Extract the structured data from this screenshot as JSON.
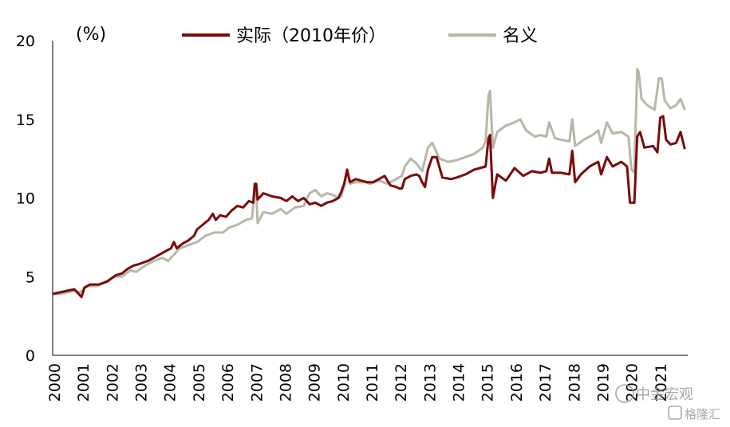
{
  "chart_data": {
    "type": "line",
    "unit_label": "(%)",
    "ylim": [
      0,
      20
    ],
    "yticks": [
      0,
      5,
      10,
      15,
      20
    ],
    "xlim": [
      2000,
      2022
    ],
    "xticks": [
      "2000",
      "2001",
      "2002",
      "2003",
      "2004",
      "2005",
      "2006",
      "2007",
      "2008",
      "2009",
      "2010",
      "2011",
      "2012",
      "2013",
      "2014",
      "2015",
      "2016",
      "2017",
      "2018",
      "2019",
      "2020",
      "2021"
    ],
    "legend_position": "top",
    "grid": false,
    "series": [
      {
        "name": "实际（2010年价）",
        "color": "#7a0a0a",
        "points": [
          [
            2000.0,
            3.9
          ],
          [
            2000.25,
            4.0
          ],
          [
            2000.5,
            4.1
          ],
          [
            2000.75,
            4.2
          ],
          [
            2000.95,
            3.8
          ],
          [
            2001.0,
            3.7
          ],
          [
            2001.1,
            4.3
          ],
          [
            2001.3,
            4.5
          ],
          [
            2001.6,
            4.5
          ],
          [
            2001.9,
            4.7
          ],
          [
            2002.2,
            5.1
          ],
          [
            2002.4,
            5.2
          ],
          [
            2002.6,
            5.5
          ],
          [
            2002.8,
            5.7
          ],
          [
            2003.0,
            5.8
          ],
          [
            2003.3,
            6.0
          ],
          [
            2003.6,
            6.3
          ],
          [
            2003.9,
            6.6
          ],
          [
            2004.1,
            6.8
          ],
          [
            2004.2,
            7.2
          ],
          [
            2004.3,
            6.8
          ],
          [
            2004.5,
            7.1
          ],
          [
            2004.7,
            7.3
          ],
          [
            2004.9,
            7.6
          ],
          [
            2005.0,
            8.0
          ],
          [
            2005.2,
            8.3
          ],
          [
            2005.4,
            8.6
          ],
          [
            2005.55,
            9.0
          ],
          [
            2005.65,
            8.6
          ],
          [
            2005.8,
            8.9
          ],
          [
            2006.0,
            8.8
          ],
          [
            2006.2,
            9.2
          ],
          [
            2006.4,
            9.5
          ],
          [
            2006.6,
            9.4
          ],
          [
            2006.8,
            9.8
          ],
          [
            2006.95,
            9.7
          ],
          [
            2007.0,
            10.9
          ],
          [
            2007.05,
            10.9
          ],
          [
            2007.1,
            9.9
          ],
          [
            2007.3,
            10.3
          ],
          [
            2007.6,
            10.1
          ],
          [
            2007.9,
            10.0
          ],
          [
            2008.1,
            9.8
          ],
          [
            2008.3,
            10.1
          ],
          [
            2008.5,
            9.8
          ],
          [
            2008.7,
            10.0
          ],
          [
            2008.9,
            9.6
          ],
          [
            2009.1,
            9.7
          ],
          [
            2009.3,
            9.5
          ],
          [
            2009.5,
            9.7
          ],
          [
            2009.7,
            9.8
          ],
          [
            2009.9,
            10.0
          ],
          [
            2010.0,
            10.4
          ],
          [
            2010.1,
            10.9
          ],
          [
            2010.2,
            11.8
          ],
          [
            2010.3,
            11.0
          ],
          [
            2010.5,
            11.2
          ],
          [
            2010.7,
            11.1
          ],
          [
            2010.9,
            11.0
          ],
          [
            2011.1,
            11.0
          ],
          [
            2011.3,
            11.2
          ],
          [
            2011.5,
            11.4
          ],
          [
            2011.7,
            10.8
          ],
          [
            2011.9,
            10.7
          ],
          [
            2012.0,
            10.6
          ],
          [
            2012.1,
            10.6
          ],
          [
            2012.2,
            11.2
          ],
          [
            2012.4,
            11.4
          ],
          [
            2012.6,
            11.5
          ],
          [
            2012.7,
            11.4
          ],
          [
            2012.8,
            11.0
          ],
          [
            2012.9,
            10.7
          ],
          [
            2013.0,
            11.8
          ],
          [
            2013.15,
            12.6
          ],
          [
            2013.3,
            12.6
          ],
          [
            2013.5,
            11.3
          ],
          [
            2013.8,
            11.2
          ],
          [
            2014.0,
            11.3
          ],
          [
            2014.3,
            11.5
          ],
          [
            2014.6,
            11.8
          ],
          [
            2014.8,
            11.9
          ],
          [
            2015.0,
            12.0
          ],
          [
            2015.1,
            13.8
          ],
          [
            2015.15,
            14.0
          ],
          [
            2015.25,
            10.0
          ],
          [
            2015.4,
            11.5
          ],
          [
            2015.7,
            11.1
          ],
          [
            2016.0,
            11.9
          ],
          [
            2016.3,
            11.4
          ],
          [
            2016.6,
            11.7
          ],
          [
            2016.9,
            11.6
          ],
          [
            2017.1,
            11.7
          ],
          [
            2017.2,
            12.5
          ],
          [
            2017.3,
            11.6
          ],
          [
            2017.6,
            11.6
          ],
          [
            2017.9,
            11.5
          ],
          [
            2018.0,
            13.0
          ],
          [
            2018.1,
            11.0
          ],
          [
            2018.3,
            11.5
          ],
          [
            2018.6,
            12.0
          ],
          [
            2018.9,
            12.3
          ],
          [
            2019.0,
            11.5
          ],
          [
            2019.2,
            12.6
          ],
          [
            2019.4,
            12.0
          ],
          [
            2019.7,
            12.3
          ],
          [
            2019.9,
            12.0
          ],
          [
            2020.0,
            9.7
          ],
          [
            2020.15,
            9.7
          ],
          [
            2020.25,
            13.9
          ],
          [
            2020.35,
            14.2
          ],
          [
            2020.5,
            13.2
          ],
          [
            2020.8,
            13.3
          ],
          [
            2020.95,
            12.9
          ],
          [
            2021.05,
            15.1
          ],
          [
            2021.15,
            15.2
          ],
          [
            2021.25,
            13.7
          ],
          [
            2021.4,
            13.4
          ],
          [
            2021.6,
            13.5
          ],
          [
            2021.75,
            14.2
          ],
          [
            2021.9,
            13.1
          ]
        ]
      },
      {
        "name": "名义",
        "color": "#b8b7a8",
        "points": [
          [
            2000.0,
            3.9
          ],
          [
            2000.25,
            3.9
          ],
          [
            2000.5,
            4.0
          ],
          [
            2000.75,
            4.1
          ],
          [
            2000.95,
            4.0
          ],
          [
            2001.0,
            4.1
          ],
          [
            2001.2,
            4.4
          ],
          [
            2001.5,
            4.4
          ],
          [
            2001.8,
            4.6
          ],
          [
            2002.1,
            5.0
          ],
          [
            2002.4,
            5.0
          ],
          [
            2002.7,
            5.4
          ],
          [
            2002.9,
            5.3
          ],
          [
            2003.2,
            5.7
          ],
          [
            2003.5,
            6.0
          ],
          [
            2003.8,
            6.2
          ],
          [
            2004.0,
            6.0
          ],
          [
            2004.2,
            6.4
          ],
          [
            2004.4,
            6.8
          ],
          [
            2004.7,
            7.0
          ],
          [
            2005.0,
            7.2
          ],
          [
            2005.3,
            7.6
          ],
          [
            2005.6,
            7.8
          ],
          [
            2005.9,
            7.8
          ],
          [
            2006.1,
            8.1
          ],
          [
            2006.4,
            8.3
          ],
          [
            2006.7,
            8.6
          ],
          [
            2006.9,
            8.7
          ],
          [
            2007.0,
            10.5
          ],
          [
            2007.05,
            10.5
          ],
          [
            2007.1,
            8.4
          ],
          [
            2007.3,
            9.1
          ],
          [
            2007.6,
            9.0
          ],
          [
            2007.9,
            9.3
          ],
          [
            2008.1,
            9.0
          ],
          [
            2008.4,
            9.4
          ],
          [
            2008.7,
            9.5
          ],
          [
            2008.9,
            10.3
          ],
          [
            2009.1,
            10.5
          ],
          [
            2009.3,
            10.1
          ],
          [
            2009.5,
            10.3
          ],
          [
            2009.7,
            10.2
          ],
          [
            2009.9,
            10.0
          ],
          [
            2010.0,
            10.1
          ],
          [
            2010.1,
            10.8
          ],
          [
            2010.2,
            11.7
          ],
          [
            2010.3,
            10.9
          ],
          [
            2010.5,
            11.0
          ],
          [
            2010.8,
            11.0
          ],
          [
            2011.0,
            10.9
          ],
          [
            2011.3,
            11.1
          ],
          [
            2011.6,
            10.9
          ],
          [
            2011.9,
            11.2
          ],
          [
            2012.1,
            11.4
          ],
          [
            2012.2,
            12.0
          ],
          [
            2012.4,
            12.5
          ],
          [
            2012.6,
            12.2
          ],
          [
            2012.8,
            11.7
          ],
          [
            2013.0,
            13.2
          ],
          [
            2013.15,
            13.5
          ],
          [
            2013.4,
            12.5
          ],
          [
            2013.7,
            12.3
          ],
          [
            2014.0,
            12.4
          ],
          [
            2014.3,
            12.6
          ],
          [
            2014.6,
            12.8
          ],
          [
            2014.9,
            13.2
          ],
          [
            2015.0,
            13.6
          ],
          [
            2015.1,
            16.5
          ],
          [
            2015.15,
            16.8
          ],
          [
            2015.25,
            13.2
          ],
          [
            2015.4,
            14.2
          ],
          [
            2015.7,
            14.6
          ],
          [
            2016.0,
            14.8
          ],
          [
            2016.2,
            15.0
          ],
          [
            2016.4,
            14.3
          ],
          [
            2016.7,
            13.9
          ],
          [
            2016.9,
            14.0
          ],
          [
            2017.1,
            13.9
          ],
          [
            2017.2,
            14.8
          ],
          [
            2017.4,
            13.8
          ],
          [
            2017.6,
            13.7
          ],
          [
            2017.9,
            13.6
          ],
          [
            2018.0,
            15.0
          ],
          [
            2018.1,
            13.3
          ],
          [
            2018.4,
            13.7
          ],
          [
            2018.7,
            14.0
          ],
          [
            2018.9,
            14.3
          ],
          [
            2019.0,
            13.5
          ],
          [
            2019.2,
            14.8
          ],
          [
            2019.4,
            14.1
          ],
          [
            2019.7,
            14.2
          ],
          [
            2019.95,
            13.9
          ],
          [
            2020.05,
            11.8
          ],
          [
            2020.15,
            11.6
          ],
          [
            2020.25,
            18.2
          ],
          [
            2020.3,
            18.0
          ],
          [
            2020.4,
            16.3
          ],
          [
            2020.6,
            15.9
          ],
          [
            2020.85,
            15.6
          ],
          [
            2021.0,
            17.6
          ],
          [
            2021.1,
            17.6
          ],
          [
            2021.2,
            16.2
          ],
          [
            2021.4,
            15.7
          ],
          [
            2021.6,
            15.9
          ],
          [
            2021.75,
            16.3
          ],
          [
            2021.9,
            15.6
          ]
        ]
      }
    ],
    "watermarks": [
      "中金宏观",
      "格隆汇"
    ]
  }
}
